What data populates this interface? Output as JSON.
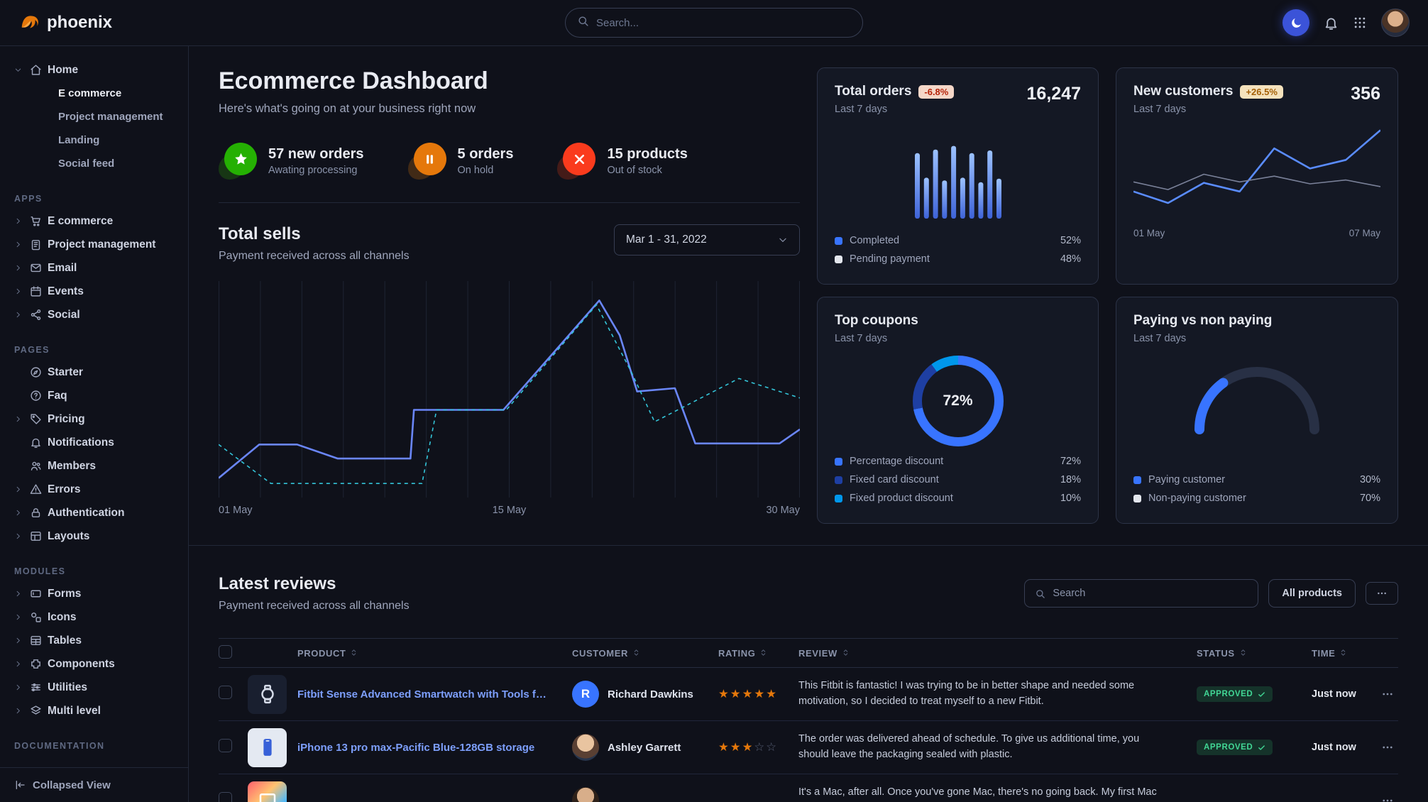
{
  "navbar": {
    "brand": "phoenix",
    "search_placeholder": "Search..."
  },
  "sidebar": {
    "collapsed_view_label": "Collapsed View",
    "sections": [
      {
        "label": "",
        "items": [
          {
            "label": "Home",
            "icon": "home",
            "caret": "down",
            "children": [
              {
                "label": "E commerce",
                "active": true
              },
              {
                "label": "Project management",
                "active": false
              },
              {
                "label": "Landing",
                "active": false
              },
              {
                "label": "Social feed",
                "active": false
              }
            ]
          }
        ]
      },
      {
        "label": "APPS",
        "items": [
          {
            "label": "E commerce",
            "icon": "cart",
            "caret": "right"
          },
          {
            "label": "Project management",
            "icon": "clipboard",
            "caret": "right"
          },
          {
            "label": "Email",
            "icon": "envelope",
            "caret": "right"
          },
          {
            "label": "Events",
            "icon": "calendar",
            "caret": "right"
          },
          {
            "label": "Social",
            "icon": "share",
            "caret": "right"
          }
        ]
      },
      {
        "label": "PAGES",
        "items": [
          {
            "label": "Starter",
            "icon": "compass"
          },
          {
            "label": "Faq",
            "icon": "question"
          },
          {
            "label": "Pricing",
            "icon": "tag",
            "caret": "right"
          },
          {
            "label": "Notifications",
            "icon": "bell"
          },
          {
            "label": "Members",
            "icon": "users"
          },
          {
            "label": "Errors",
            "icon": "warning",
            "caret": "right"
          },
          {
            "label": "Authentication",
            "icon": "lock",
            "caret": "right"
          },
          {
            "label": "Layouts",
            "icon": "layout",
            "caret": "right"
          }
        ]
      },
      {
        "label": "MODULES",
        "items": [
          {
            "label": "Forms",
            "icon": "form",
            "caret": "right"
          },
          {
            "label": "Icons",
            "icon": "shapes",
            "caret": "right"
          },
          {
            "label": "Tables",
            "icon": "table",
            "caret": "right"
          },
          {
            "label": "Components",
            "icon": "puzzle",
            "caret": "right"
          },
          {
            "label": "Utilities",
            "icon": "sliders",
            "caret": "right"
          },
          {
            "label": "Multi level",
            "icon": "layers",
            "caret": "right"
          }
        ]
      },
      {
        "label": "DOCUMENTATION",
        "items": []
      }
    ]
  },
  "header": {
    "title": "Ecommerce Dashboard",
    "subtitle": "Here's what's going on at your business right now"
  },
  "stats": [
    {
      "label": "57 new orders",
      "sub": "Awating processing",
      "icon": "star",
      "color": "#25b003"
    },
    {
      "label": "5 orders",
      "sub": "On hold",
      "icon": "pause",
      "color": "#e5a застосув"
    },
    {
      "label": "15 products",
      "sub": "Out of stock",
      "icon": "cross",
      "color": "#fa3b1d"
    }
  ],
  "total_sells": {
    "title": "Total sells",
    "subtitle": "Payment received across all channels",
    "date_range": "Mar 1 - 31, 2022",
    "chart_data": {
      "type": "line",
      "x_ticks": [
        "01 May",
        "15 May",
        "30 May"
      ],
      "grid_lines": 15,
      "series": [
        {
          "name": "solid",
          "color": "#6a86f8",
          "width": 2.6,
          "points": [
            [
              0,
              91
            ],
            [
              7,
              75.5
            ],
            [
              13.5,
              75.5
            ],
            [
              20.5,
              82
            ],
            [
              33,
              82
            ],
            [
              33.6,
              59.5
            ],
            [
              49,
              59.5
            ],
            [
              65.5,
              9
            ],
            [
              69,
              25
            ],
            [
              72,
              51
            ],
            [
              78.5,
              49.5
            ],
            [
              82,
              75
            ],
            [
              96.5,
              75
            ],
            [
              100,
              68.5
            ]
          ]
        },
        {
          "name": "dashed",
          "color": "#33c4d8",
          "width": 1.6,
          "dash": "5 5",
          "points": [
            [
              0,
              75.5
            ],
            [
              9,
              93.5
            ],
            [
              35,
              93.5
            ],
            [
              37.5,
              59.5
            ],
            [
              49.5,
              59.5
            ],
            [
              65,
              11
            ],
            [
              71,
              42
            ],
            [
              75,
              65
            ],
            [
              89.5,
              45
            ],
            [
              100,
              54
            ]
          ]
        }
      ]
    }
  },
  "cards": {
    "total_orders": {
      "title": "Total orders",
      "badge": "-6.8%",
      "period": "Last 7 days",
      "value": "16,247",
      "chart_data": {
        "type": "bar",
        "values": [
          72,
          45,
          76,
          42,
          80,
          45,
          72,
          40,
          75,
          44
        ],
        "bar_color_top": "#9cc2ff",
        "bar_color_bottom": "#3e63d8"
      },
      "legend": [
        {
          "name": "Completed",
          "value": "52%",
          "color": "#3874ff"
        },
        {
          "name": "Pending payment",
          "value": "48%",
          "color": "#e3e6ed"
        }
      ]
    },
    "new_customers": {
      "title": "New customers",
      "badge": "+26.5%",
      "period": "Last 7 days",
      "value": "356",
      "chart_data": {
        "type": "line",
        "x_ticks": [
          "01 May",
          "07 May"
        ],
        "series": [
          {
            "name": "current",
            "color": "#5a8cff",
            "width": 2.6,
            "points": [
              [
                0,
                68
              ],
              [
                14,
                80
              ],
              [
                28.5,
                59
              ],
              [
                43,
                68
              ],
              [
                57,
                23
              ],
              [
                71.5,
                44
              ],
              [
                86,
                35
              ],
              [
                100,
                4
              ]
            ]
          },
          {
            "name": "previous",
            "color": "#7a8199",
            "width": 1.6,
            "points": [
              [
                0,
                58
              ],
              [
                14,
                66
              ],
              [
                28.5,
                50
              ],
              [
                43,
                58
              ],
              [
                57,
                52
              ],
              [
                71.5,
                60
              ],
              [
                86,
                56
              ],
              [
                100,
                63
              ]
            ]
          }
        ]
      }
    },
    "top_coupons": {
      "title": "Top coupons",
      "period": "Last 7 days",
      "center_value": "72%",
      "chart_data": {
        "type": "donut",
        "slices": [
          {
            "name": "Percentage discount",
            "value": 72,
            "color": "#3874ff"
          },
          {
            "name": "Fixed card discount",
            "value": 18,
            "color": "#1e3fa3"
          },
          {
            "name": "Fixed product discount",
            "value": 10,
            "color": "#0097eb"
          }
        ]
      }
    },
    "paying_vs_non_paying": {
      "title": "Paying vs non paying",
      "period": "Last 7 days",
      "chart_data": {
        "type": "gauge",
        "value": 30,
        "color": "#3874ff",
        "track": "#283045"
      },
      "legend": [
        {
          "name": "Paying customer",
          "value": "30%",
          "color": "#3874ff"
        },
        {
          "name": "Non-paying customer",
          "value": "70%",
          "color": "#e3e6ed"
        }
      ]
    }
  },
  "reviews": {
    "title": "Latest reviews",
    "subtitle": "Payment received across all channels",
    "search_placeholder": "Search",
    "all_products_label": "All products",
    "columns": [
      "PRODUCT",
      "CUSTOMER",
      "RATING",
      "REVIEW",
      "STATUS",
      "TIME"
    ],
    "rows": [
      {
        "product": "Fitbit Sense Advanced Smartwatch with Tools fo...",
        "thumb": "watch",
        "customer": "Richard Dawkins",
        "avatar": "initial",
        "avatar_initial": "R",
        "rating": 5,
        "review": "This Fitbit is fantastic! I was trying to be in better shape and needed some motivation, so I decided to treat myself to a new Fitbit.",
        "status": "APPROVED",
        "time": "Just now"
      },
      {
        "product": "iPhone 13 pro max-Pacific Blue-128GB storage",
        "thumb": "phone",
        "customer": "Ashley Garrett",
        "avatar": "photo-a",
        "avatar_initial": "",
        "rating": 3,
        "review": "The order was delivered ahead of schedule. To give us additional time, you should leave the packaging sealed with plastic.",
        "status": "APPROVED",
        "time": "Just now"
      },
      {
        "product": "",
        "thumb": "laptop",
        "customer": "",
        "avatar": "photo-b",
        "avatar_initial": "",
        "rating": null,
        "review": "It's a Mac, after all. Once you've gone Mac, there's no going back. My first Mac lasted...",
        "status": "",
        "time": ""
      }
    ]
  }
}
